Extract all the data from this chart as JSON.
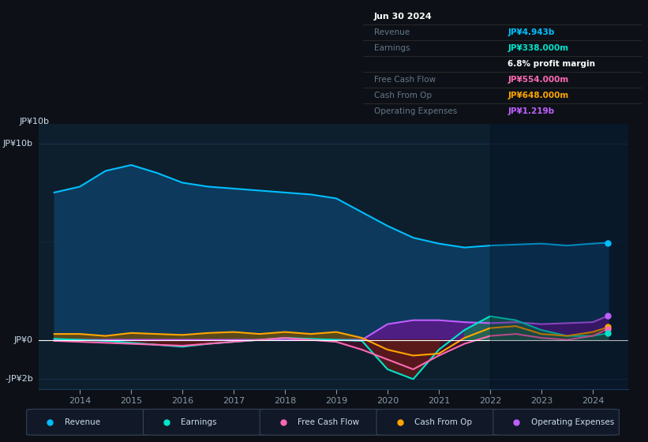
{
  "background_color": "#0d1117",
  "plot_bg_color": "#0d1f2d",
  "title_date": "Jun 30 2024",
  "info": {
    "Revenue": {
      "value": "JP¥4.943b",
      "color": "#00bfff"
    },
    "Earnings": {
      "value": "JP¥338.000m",
      "color": "#00e5cc"
    },
    "profit_margin": "6.8%",
    "Free Cash Flow": {
      "value": "JP¥554.000m",
      "color": "#ff69b4"
    },
    "Cash From Op": {
      "value": "JP¥648.000m",
      "color": "#ffa500"
    },
    "Operating Expenses": {
      "value": "JP¥1.219b",
      "color": "#bf5fff"
    }
  },
  "ylabel_top": "JP¥10b",
  "ylabel_zero": "JP¥0",
  "ylabel_bot": "-JP¥2b",
  "ylim": [
    -2.5,
    11
  ],
  "years": [
    2013.5,
    2014,
    2014.5,
    2015,
    2015.5,
    2016,
    2016.5,
    2017,
    2017.5,
    2018,
    2018.5,
    2019,
    2019.5,
    2020,
    2020.5,
    2021,
    2021.5,
    2022,
    2022.5,
    2023,
    2023.5,
    2024,
    2024.3
  ],
  "revenue": [
    7.5,
    7.8,
    8.6,
    8.9,
    8.5,
    8.0,
    7.8,
    7.7,
    7.6,
    7.5,
    7.4,
    7.2,
    6.5,
    5.8,
    5.2,
    4.9,
    4.7,
    4.8,
    4.85,
    4.9,
    4.8,
    4.9,
    4.943
  ],
  "earnings": [
    0.05,
    0.0,
    -0.05,
    -0.15,
    -0.25,
    -0.35,
    -0.2,
    -0.1,
    0.0,
    0.1,
    0.05,
    0.0,
    -0.05,
    -1.5,
    -2.0,
    -0.5,
    0.5,
    1.2,
    1.0,
    0.5,
    0.2,
    0.2,
    0.338
  ],
  "fcf": [
    -0.05,
    -0.1,
    -0.15,
    -0.2,
    -0.25,
    -0.3,
    -0.2,
    -0.1,
    0.0,
    0.1,
    0.0,
    -0.1,
    -0.5,
    -1.0,
    -1.5,
    -0.8,
    -0.2,
    0.2,
    0.3,
    0.1,
    0.0,
    0.2,
    0.554
  ],
  "cashop": [
    0.3,
    0.3,
    0.2,
    0.35,
    0.3,
    0.25,
    0.35,
    0.4,
    0.3,
    0.4,
    0.3,
    0.4,
    0.1,
    -0.5,
    -0.8,
    -0.7,
    0.1,
    0.6,
    0.7,
    0.3,
    0.2,
    0.4,
    0.648
  ],
  "opex": [
    0.0,
    0.0,
    0.0,
    0.0,
    0.0,
    0.0,
    0.0,
    0.0,
    0.0,
    0.0,
    0.0,
    0.0,
    0.0,
    0.8,
    1.0,
    1.0,
    0.9,
    0.85,
    0.9,
    0.8,
    0.85,
    0.9,
    1.219
  ],
  "colors": {
    "revenue_line": "#00bfff",
    "revenue_fill": "#0d3a5c",
    "earnings_line": "#00e5cc",
    "earnings_fill_pos": "#1a6b5a",
    "earnings_fill_neg": "#5c1a1a",
    "fcf_line": "#ff69b4",
    "fcf_fill": "#8b0a3a",
    "cashop_line": "#ffa500",
    "cashop_fill": "#7a5000",
    "opex_line": "#bf5fff",
    "opex_fill": "#5a1a8a",
    "grid": "#1a3a5c",
    "zero_line": "#ffffff",
    "text": "#8899aa",
    "label_text": "#ccddee"
  },
  "legend": [
    {
      "label": "Revenue",
      "color": "#00bfff"
    },
    {
      "label": "Earnings",
      "color": "#00e5cc"
    },
    {
      "label": "Free Cash Flow",
      "color": "#ff69b4"
    },
    {
      "label": "Cash From Op",
      "color": "#ffa500"
    },
    {
      "label": "Operating Expenses",
      "color": "#bf5fff"
    }
  ]
}
